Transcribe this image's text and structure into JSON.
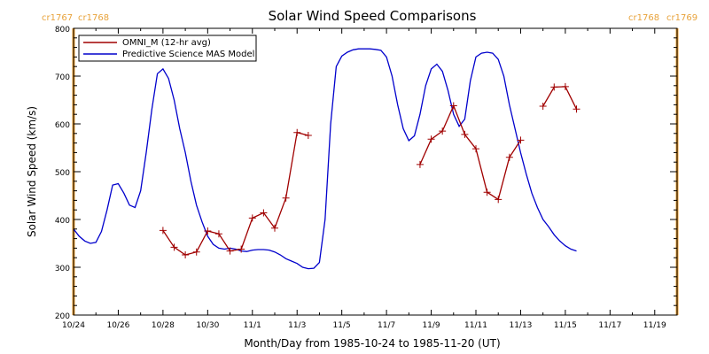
{
  "chart_data": {
    "type": "line",
    "title": "Solar Wind Speed Comparisons",
    "xlabel": "Month/Day from 1985-10-24 to 1985-11-20 (UT)",
    "ylabel": "Solar Wind Speed (km/s)",
    "ylim": [
      200,
      800
    ],
    "xlim": [
      "1985-10-24",
      "1985-11-20"
    ],
    "x_ticks": [
      "10/24",
      "10/26",
      "10/28",
      "10/30",
      "11/1",
      "11/3",
      "11/5",
      "11/7",
      "11/9",
      "11/11",
      "11/13",
      "11/15",
      "11/17",
      "11/19"
    ],
    "y_ticks": [
      200,
      300,
      400,
      500,
      600,
      700,
      800
    ],
    "grid": false,
    "legend_position": "top-left",
    "legend": [
      "OMNI_M (12-hr avg)",
      "Predictive Science MAS Model"
    ],
    "series_colors": {
      "omni": "#a00000",
      "model": "#0000cc"
    },
    "cr_boundary_color": "#f0a030",
    "carrington_markers": [
      {
        "label_left": "cr1767",
        "label_right": "cr1768",
        "date": "1985-10-24"
      },
      {
        "label_left": "cr1768",
        "label_right": "cr1769",
        "date": "1985-11-20"
      }
    ],
    "series": [
      {
        "name": "Predictive Science MAS Model",
        "color": "#0000cc",
        "points": [
          [
            "1985-10-24T00",
            380
          ],
          [
            "1985-10-24T06",
            365
          ],
          [
            "1985-10-24T12",
            355
          ],
          [
            "1985-10-24T18",
            350
          ],
          [
            "1985-10-25T00",
            352
          ],
          [
            "1985-10-25T06",
            375
          ],
          [
            "1985-10-25T12",
            420
          ],
          [
            "1985-10-25T18",
            472
          ],
          [
            "1985-10-26T00",
            475
          ],
          [
            "1985-10-26T06",
            455
          ],
          [
            "1985-10-26T12",
            430
          ],
          [
            "1985-10-26T18",
            425
          ],
          [
            "1985-10-27T00",
            460
          ],
          [
            "1985-10-27T06",
            540
          ],
          [
            "1985-10-27T12",
            630
          ],
          [
            "1985-10-27T18",
            705
          ],
          [
            "1985-10-28T00",
            715
          ],
          [
            "1985-10-28T06",
            695
          ],
          [
            "1985-10-28T12",
            650
          ],
          [
            "1985-10-28T18",
            590
          ],
          [
            "1985-10-29T00",
            540
          ],
          [
            "1985-10-29T06",
            480
          ],
          [
            "1985-10-29T12",
            430
          ],
          [
            "1985-10-29T18",
            395
          ],
          [
            "1985-10-30T00",
            365
          ],
          [
            "1985-10-30T06",
            348
          ],
          [
            "1985-10-30T12",
            340
          ],
          [
            "1985-10-30T18",
            338
          ],
          [
            "1985-10-31T00",
            340
          ],
          [
            "1985-10-31T06",
            338
          ],
          [
            "1985-10-31T12",
            334
          ],
          [
            "1985-10-31T18",
            333
          ],
          [
            "1985-11-01T00",
            336
          ],
          [
            "1985-11-01T06",
            337
          ],
          [
            "1985-11-01T12",
            337
          ],
          [
            "1985-11-01T18",
            336
          ],
          [
            "1985-11-02T00",
            332
          ],
          [
            "1985-11-02T06",
            326
          ],
          [
            "1985-11-02T12",
            318
          ],
          [
            "1985-11-02T18",
            313
          ],
          [
            "1985-11-03T00",
            308
          ],
          [
            "1985-11-03T06",
            300
          ],
          [
            "1985-11-03T12",
            297
          ],
          [
            "1985-11-03T18",
            298
          ],
          [
            "1985-11-04T00",
            310
          ],
          [
            "1985-11-04T06",
            400
          ],
          [
            "1985-11-04T12",
            600
          ],
          [
            "1985-11-04T18",
            720
          ],
          [
            "1985-11-05T00",
            742
          ],
          [
            "1985-11-05T06",
            750
          ],
          [
            "1985-11-05T12",
            755
          ],
          [
            "1985-11-05T18",
            757
          ],
          [
            "1985-11-06T00",
            757
          ],
          [
            "1985-11-06T06",
            757
          ],
          [
            "1985-11-06T12",
            756
          ],
          [
            "1985-11-06T18",
            754
          ],
          [
            "1985-11-07T00",
            740
          ],
          [
            "1985-11-07T06",
            700
          ],
          [
            "1985-11-07T12",
            640
          ],
          [
            "1985-11-07T18",
            590
          ],
          [
            "1985-11-08T00",
            565
          ],
          [
            "1985-11-08T06",
            575
          ],
          [
            "1985-11-08T12",
            620
          ],
          [
            "1985-11-08T18",
            680
          ],
          [
            "1985-11-09T00",
            715
          ],
          [
            "1985-11-09T06",
            725
          ],
          [
            "1985-11-09T12",
            710
          ],
          [
            "1985-11-09T18",
            670
          ],
          [
            "1985-11-10T00",
            620
          ],
          [
            "1985-11-10T06",
            595
          ],
          [
            "1985-11-10T12",
            610
          ],
          [
            "1985-11-10T18",
            690
          ],
          [
            "1985-11-11T00",
            740
          ],
          [
            "1985-11-11T06",
            748
          ],
          [
            "1985-11-11T12",
            750
          ],
          [
            "1985-11-11T18",
            748
          ],
          [
            "1985-11-12T00",
            735
          ],
          [
            "1985-11-12T06",
            700
          ],
          [
            "1985-11-12T12",
            640
          ],
          [
            "1985-11-12T18",
            590
          ],
          [
            "1985-11-13T00",
            540
          ],
          [
            "1985-11-13T06",
            495
          ],
          [
            "1985-11-13T12",
            455
          ],
          [
            "1985-11-13T18",
            425
          ],
          [
            "1985-11-14T00",
            400
          ],
          [
            "1985-11-14T06",
            385
          ],
          [
            "1985-11-14T12",
            368
          ],
          [
            "1985-11-14T18",
            355
          ],
          [
            "1985-11-15T00",
            345
          ],
          [
            "1985-11-15T06",
            338
          ],
          [
            "1985-11-15T12",
            334
          ]
        ]
      },
      {
        "name": "OMNI_M (12-hr avg)",
        "color": "#a00000",
        "marker": "+",
        "segments": [
          [
            [
              "1985-10-28T00",
              377
            ],
            [
              "1985-10-28T12",
              342
            ],
            [
              "1985-10-29T00",
              326
            ],
            [
              "1985-10-29T12",
              332
            ],
            [
              "1985-10-30T00",
              376
            ],
            [
              "1985-10-30T12",
              370
            ],
            [
              "1985-10-31T00",
              334
            ],
            [
              "1985-10-31T12",
              338
            ],
            [
              "1985-11-01T00",
              403
            ],
            [
              "1985-11-01T12",
              414
            ],
            [
              "1985-11-02T00",
              382
            ],
            [
              "1985-11-02T12",
              445
            ],
            [
              "1985-11-03T00",
              582
            ],
            [
              "1985-11-03T12",
              576
            ]
          ],
          [
            [
              "1985-11-08T12",
              515
            ],
            [
              "1985-11-09T00",
              568
            ],
            [
              "1985-11-09T12",
              585
            ],
            [
              "1985-11-10T00",
              638
            ],
            [
              "1985-11-10T12",
              578
            ],
            [
              "1985-11-11T00",
              548
            ],
            [
              "1985-11-11T12",
              457
            ],
            [
              "1985-11-12T00",
              442
            ],
            [
              "1985-11-12T12",
              530
            ],
            [
              "1985-11-13T00",
              566
            ]
          ],
          [
            [
              "1985-11-14T00",
              637
            ],
            [
              "1985-11-14T12",
              677
            ],
            [
              "1985-11-15T00",
              678
            ],
            [
              "1985-11-15T12",
              631
            ]
          ]
        ]
      }
    ]
  }
}
